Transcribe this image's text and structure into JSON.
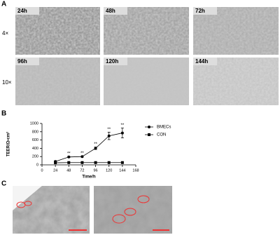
{
  "panel_labels": [
    "A",
    "B",
    "C"
  ],
  "micrographs": {
    "row_labels": [
      "4×",
      "10×"
    ],
    "labels": [
      "24h",
      "48h",
      "72h",
      "96h",
      "120h",
      "144h"
    ]
  },
  "chart_data": {
    "type": "line",
    "x": [
      24,
      48,
      72,
      96,
      120,
      144
    ],
    "xlim": [
      0,
      168
    ],
    "xticks": [
      0,
      24,
      48,
      72,
      96,
      120,
      144,
      168
    ],
    "ylim": [
      0,
      1000
    ],
    "yticks": [
      0,
      200,
      400,
      600,
      800,
      1000
    ],
    "x_label": "Time/h",
    "y_label": "TEER/Ω•cm²",
    "series": [
      {
        "name": "BMECs",
        "color": "#000000",
        "marker": "circle",
        "values": [
          80,
          190,
          200,
          400,
          700,
          770
        ],
        "errors": [
          20,
          15,
          15,
          30,
          90,
          120
        ],
        "point_labels": [
          null,
          "**",
          "**",
          "**",
          "**",
          "**"
        ]
      },
      {
        "name": "CON",
        "color": "#000000",
        "marker": "square",
        "values": [
          50,
          55,
          55,
          55,
          55,
          55
        ]
      }
    ]
  }
}
